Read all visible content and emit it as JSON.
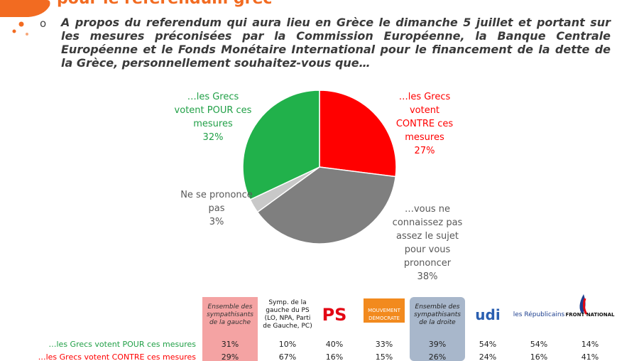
{
  "header": {
    "title": "pour le référendum grec"
  },
  "question": "A propos du referendum qui aura lieu en Grèce le dimanche 5 juillet et portant sur les mesures préconisées par la Commission Européenne, la Banque Centrale Européenne et le Fonds Monétaire International pour le financement de la dette de la Grèce, personnellement souhaitez-vous que…",
  "chart_data": {
    "type": "pie",
    "categories": [
      "…les Grecs votent CONTRE ces mesures",
      "…vous ne connaissez pas assez le sujet pour vous prononcer",
      "Ne se prononce pas",
      "…les Grecs votent POUR ces mesures"
    ],
    "values": [
      27,
      38,
      3,
      32
    ],
    "value_labels": [
      "27%",
      "38%",
      "3%",
      "32%"
    ],
    "colors": [
      "#ff0000",
      "#7f7f7f",
      "#c8c8c8",
      "#21b14b"
    ]
  },
  "table": {
    "columns": [
      "Ensemble des sympathisants de la gauche",
      "Symp. de la gauche du PS (LO, NPA, Parti de Gauche, PC)",
      "PS",
      "MOUVEMENT DÉMOCRATE",
      "Ensemble des sympathisants de la droite",
      "udi",
      "les Républicains",
      "FRONT NATIONAL"
    ],
    "rows": [
      {
        "label": "…les Grecs votent POUR ces mesures",
        "cells": [
          "31%",
          "10%",
          "40%",
          "33%",
          "39%",
          "54%",
          "54%",
          "14%"
        ]
      },
      {
        "label": "…les Grecs votent CONTRE ces mesures",
        "cells": [
          "29%",
          "67%",
          "16%",
          "15%",
          "26%",
          "24%",
          "16%",
          "41%"
        ]
      }
    ]
  }
}
